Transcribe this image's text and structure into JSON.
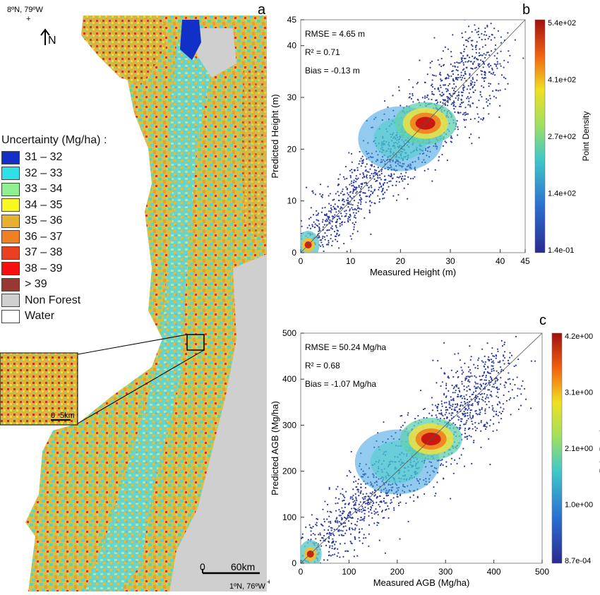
{
  "map": {
    "panel_letter": "a",
    "corner_top_left": "8ºN, 79ºW",
    "corner_bottom_right": "1ºN, 76ºW",
    "north_label": "N",
    "scale_bar": {
      "zero": "0",
      "end": "60km"
    },
    "inset_scale": {
      "zero": "0",
      "end": "5km"
    },
    "legend": {
      "title": "Uncertainty (Mg/ha) :",
      "items": [
        {
          "label": "31 – 32",
          "color": "#1030c8"
        },
        {
          "label": "32 – 33",
          "color": "#30e0e8"
        },
        {
          "label": "33 – 34",
          "color": "#90f090"
        },
        {
          "label": "34 – 35",
          "color": "#f8f820"
        },
        {
          "label": "35 – 36",
          "color": "#e8b030"
        },
        {
          "label": "36 – 37",
          "color": "#f08020"
        },
        {
          "label": "37 – 38",
          "color": "#e84020"
        },
        {
          "label": "38 – 39",
          "color": "#f81010"
        },
        {
          "label": "> 39",
          "color": "#983830"
        },
        {
          "label": "Non Forest",
          "color": "#d0d0d0"
        },
        {
          "label": "Water",
          "color": "#ffffff"
        }
      ]
    }
  },
  "chart_data": [
    {
      "type": "scatter",
      "panel_letter": "b",
      "xlabel": "Measured Height (m)",
      "ylabel": "Predicted Height (m)",
      "xlim": [
        0,
        45
      ],
      "ylim": [
        0,
        45
      ],
      "xticks": [
        0,
        10,
        20,
        30,
        40,
        45
      ],
      "yticks": [
        0,
        10,
        20,
        30,
        40,
        45
      ],
      "annotations": [
        "RMSE = 4.65 m",
        "R² = 0.71",
        "Bias = -0.13 m"
      ],
      "colorbar": {
        "label": "Point Density",
        "ticks": [
          "5.4e+02",
          "4.1e+02",
          "2.7e+02",
          "1.4e+02",
          "1.4e-01"
        ]
      },
      "density_centers": [
        [
          1.5,
          1.5
        ],
        [
          25,
          25
        ],
        [
          20,
          22
        ]
      ],
      "one_to_one_line": true
    },
    {
      "type": "scatter",
      "panel_letter": "c",
      "xlabel": "Measured AGB (Mg/ha)",
      "ylabel": "Predicted AGB (Mg/ha)",
      "xlim": [
        0,
        500
      ],
      "ylim": [
        0,
        500
      ],
      "xticks": [
        0,
        100,
        200,
        300,
        400,
        500
      ],
      "yticks": [
        0,
        100,
        200,
        300,
        400,
        500
      ],
      "annotations": [
        "RMSE = 50.24 Mg/ha",
        "R² = 0.68",
        "Bias = -1.07 Mg/ha"
      ],
      "colorbar": {
        "label": "Point Density",
        "ticks": [
          "4.2e+00",
          "3.1e+00",
          "2.1e+00",
          "1.0e+00",
          "8.7e-04"
        ]
      },
      "density_centers": [
        [
          20,
          20
        ],
        [
          270,
          270
        ],
        [
          200,
          220
        ]
      ],
      "one_to_one_line": true
    }
  ]
}
